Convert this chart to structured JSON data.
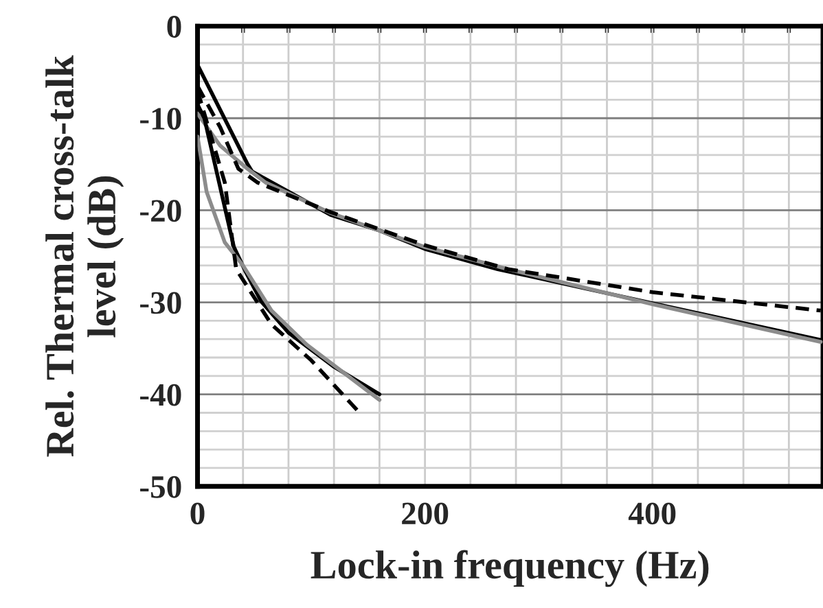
{
  "chart_data": {
    "type": "line",
    "xlabel": "Lock-in frequency (Hz)",
    "ylabel": "Rel. Thermal cross-talk\nlevel (dB)",
    "xlim": [
      0,
      550
    ],
    "ylim": [
      -50,
      0
    ],
    "xticks": [
      0,
      {
        "value": 40,
        "label": null
      },
      {
        "value": 80,
        "label": null
      },
      {
        "value": 120,
        "label": null
      },
      {
        "value": 160,
        "label": null
      },
      200,
      {
        "value": 240,
        "label": null
      },
      {
        "value": 280,
        "label": null
      },
      {
        "value": 320,
        "label": null
      },
      {
        "value": 360,
        "label": null
      },
      400,
      {
        "value": 440,
        "label": null
      },
      {
        "value": 480,
        "label": null
      },
      {
        "value": 520,
        "label": null
      }
    ],
    "yticks": [
      0,
      {
        "value": -2,
        "label": null
      },
      {
        "value": -4,
        "label": null
      },
      {
        "value": -6,
        "label": null
      },
      {
        "value": -8,
        "label": null
      },
      {
        "value": -10,
        "label": "-10"
      },
      {
        "value": -12,
        "label": null
      },
      {
        "value": -14,
        "label": null
      },
      {
        "value": -16,
        "label": null
      },
      {
        "value": -18,
        "label": null
      },
      {
        "value": -20,
        "label": "-20"
      },
      {
        "value": -22,
        "label": null
      },
      {
        "value": -24,
        "label": null
      },
      {
        "value": -26,
        "label": null
      },
      {
        "value": -28,
        "label": null
      },
      {
        "value": -30,
        "label": "-30"
      },
      {
        "value": -32,
        "label": null
      },
      {
        "value": -34,
        "label": null
      },
      {
        "value": -36,
        "label": null
      },
      {
        "value": -38,
        "label": null
      },
      {
        "value": -40,
        "label": "-40"
      },
      {
        "value": -42,
        "label": null
      },
      {
        "value": -44,
        "label": null
      },
      {
        "value": -46,
        "label": null
      },
      {
        "value": -48,
        "label": null
      },
      {
        "value": -50,
        "label": "-50"
      }
    ],
    "grid": true,
    "legend": false,
    "series": [
      {
        "color": "#000000",
        "line_style": "solid",
        "x": [
          0,
          44,
          48,
          117,
          160,
          200,
          264,
          400,
          548
        ],
        "values": [
          -4.2,
          -15,
          -15.8,
          -20.5,
          -22.2,
          -24.2,
          -26.4,
          -30.1,
          -34.1
        ]
      },
      {
        "color": "#8c8c8c",
        "line_style": "solid",
        "x": [
          0,
          20,
          44,
          60,
          117,
          200,
          273,
          400,
          548
        ],
        "values": [
          -9.5,
          -13,
          -15.5,
          -17,
          -20.3,
          -24,
          -26.4,
          -30.2,
          -34.3
        ]
      },
      {
        "color": "#000000",
        "line_style": "dashed",
        "x": [
          0,
          20,
          36,
          53,
          117,
          200,
          273,
          400,
          548
        ],
        "values": [
          -6.5,
          -11,
          -15.5,
          -17,
          -20.2,
          -23.8,
          -26.4,
          -28.9,
          -30.9
        ]
      },
      {
        "color": "#000000",
        "line_style": "solid",
        "x": [
          0,
          6,
          32,
          42,
          56,
          80,
          120,
          160
        ],
        "values": [
          -8.5,
          -10,
          -24,
          -26.6,
          -29.9,
          -33.3,
          -37,
          -40
        ]
      },
      {
        "color": "#8c8c8c",
        "line_style": "solid",
        "x": [
          0,
          8,
          24,
          40,
          65,
          96,
          160
        ],
        "values": [
          -12,
          -18,
          -23.5,
          -26,
          -30.9,
          -34.6,
          -40.6
        ]
      },
      {
        "color": "#000000",
        "line_style": "dashed",
        "x": [
          0,
          6,
          24,
          34,
          65,
          100,
          141
        ],
        "values": [
          -7,
          -9.5,
          -17,
          -26.4,
          -32.4,
          -36.3,
          -41.8
        ]
      }
    ]
  }
}
